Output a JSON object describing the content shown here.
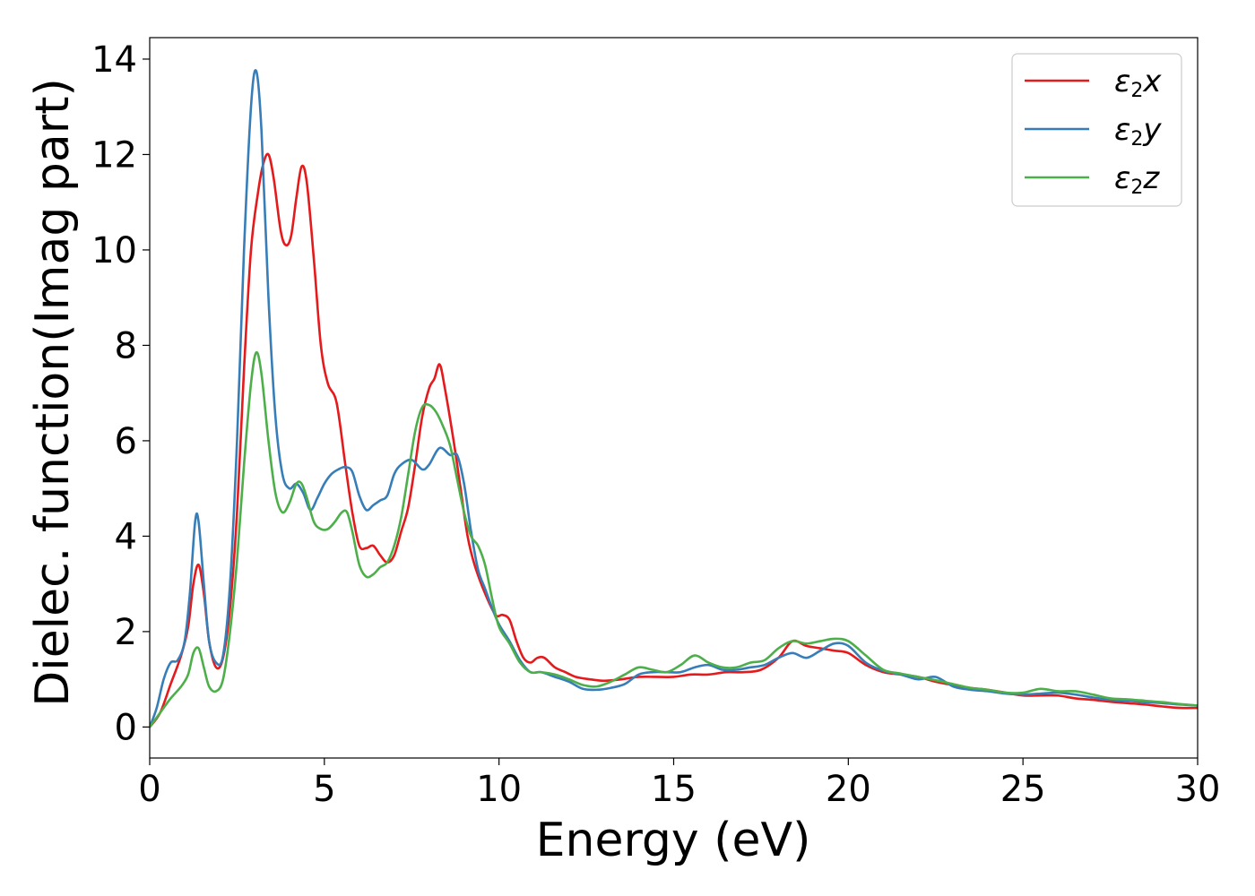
{
  "chart_data": {
    "type": "line",
    "xlabel": "Energy (eV)",
    "ylabel": "Dielec. function(Imag part)",
    "xlim": [
      0,
      30
    ],
    "ylim": [
      -0.65,
      14.45
    ],
    "xticks": [
      0,
      5,
      10,
      15,
      20,
      25,
      30
    ],
    "yticks": [
      0,
      2,
      4,
      6,
      8,
      10,
      12,
      14
    ],
    "grid": false,
    "legend_position": "top-right",
    "series": [
      {
        "name": "ε2x",
        "legend": {
          "base": "ε",
          "sub": "2",
          "suffix": "x"
        },
        "color": "#e41a1c",
        "points": [
          [
            0,
            0
          ],
          [
            0.3,
            0.3
          ],
          [
            0.6,
            0.9
          ],
          [
            0.9,
            1.5
          ],
          [
            1.1,
            2.1
          ],
          [
            1.25,
            3.0
          ],
          [
            1.4,
            3.4
          ],
          [
            1.55,
            2.8
          ],
          [
            1.7,
            1.8
          ],
          [
            1.9,
            1.25
          ],
          [
            2.1,
            1.45
          ],
          [
            2.3,
            2.5
          ],
          [
            2.5,
            4.5
          ],
          [
            2.7,
            7.5
          ],
          [
            2.9,
            10.0
          ],
          [
            3.1,
            11.2
          ],
          [
            3.25,
            11.8
          ],
          [
            3.4,
            12.0
          ],
          [
            3.55,
            11.5
          ],
          [
            3.75,
            10.4
          ],
          [
            3.9,
            10.1
          ],
          [
            4.05,
            10.3
          ],
          [
            4.2,
            11.1
          ],
          [
            4.35,
            11.75
          ],
          [
            4.5,
            11.4
          ],
          [
            4.7,
            9.8
          ],
          [
            4.9,
            8.0
          ],
          [
            5.1,
            7.2
          ],
          [
            5.35,
            6.8
          ],
          [
            5.6,
            5.5
          ],
          [
            5.8,
            4.5
          ],
          [
            6.0,
            3.8
          ],
          [
            6.2,
            3.75
          ],
          [
            6.4,
            3.8
          ],
          [
            6.6,
            3.6
          ],
          [
            6.8,
            3.45
          ],
          [
            7.0,
            3.6
          ],
          [
            7.2,
            4.1
          ],
          [
            7.4,
            4.6
          ],
          [
            7.6,
            5.5
          ],
          [
            7.8,
            6.5
          ],
          [
            8.0,
            7.1
          ],
          [
            8.15,
            7.3
          ],
          [
            8.3,
            7.6
          ],
          [
            8.45,
            7.1
          ],
          [
            8.7,
            6.0
          ],
          [
            8.9,
            5.0
          ],
          [
            9.1,
            4.0
          ],
          [
            9.3,
            3.4
          ],
          [
            9.6,
            2.8
          ],
          [
            9.9,
            2.35
          ],
          [
            10.1,
            2.35
          ],
          [
            10.3,
            2.25
          ],
          [
            10.5,
            1.8
          ],
          [
            10.7,
            1.45
          ],
          [
            10.9,
            1.35
          ],
          [
            11.1,
            1.45
          ],
          [
            11.3,
            1.45
          ],
          [
            11.6,
            1.25
          ],
          [
            11.9,
            1.15
          ],
          [
            12.2,
            1.05
          ],
          [
            12.6,
            1.0
          ],
          [
            13.0,
            0.97
          ],
          [
            13.5,
            1.0
          ],
          [
            14.0,
            1.05
          ],
          [
            14.5,
            1.05
          ],
          [
            15.0,
            1.05
          ],
          [
            15.5,
            1.1
          ],
          [
            16.0,
            1.1
          ],
          [
            16.5,
            1.15
          ],
          [
            17.0,
            1.15
          ],
          [
            17.5,
            1.2
          ],
          [
            18.0,
            1.45
          ],
          [
            18.4,
            1.8
          ],
          [
            18.8,
            1.7
          ],
          [
            19.2,
            1.65
          ],
          [
            19.6,
            1.6
          ],
          [
            20.0,
            1.55
          ],
          [
            20.5,
            1.3
          ],
          [
            21.0,
            1.15
          ],
          [
            21.5,
            1.1
          ],
          [
            22.0,
            1.05
          ],
          [
            22.5,
            0.95
          ],
          [
            23.0,
            0.88
          ],
          [
            23.5,
            0.82
          ],
          [
            24.0,
            0.78
          ],
          [
            24.5,
            0.72
          ],
          [
            25.0,
            0.66
          ],
          [
            25.5,
            0.66
          ],
          [
            26.0,
            0.66
          ],
          [
            26.5,
            0.6
          ],
          [
            27.0,
            0.57
          ],
          [
            27.5,
            0.53
          ],
          [
            28.0,
            0.5
          ],
          [
            28.5,
            0.47
          ],
          [
            29.0,
            0.43
          ],
          [
            29.5,
            0.4
          ],
          [
            30.0,
            0.4
          ]
        ]
      },
      {
        "name": "ε2y",
        "legend": {
          "base": "ε",
          "sub": "2",
          "suffix": "y"
        },
        "color": "#377eb8",
        "points": [
          [
            0,
            0
          ],
          [
            0.2,
            0.4
          ],
          [
            0.4,
            1.0
          ],
          [
            0.6,
            1.35
          ],
          [
            0.8,
            1.4
          ],
          [
            1.0,
            1.8
          ],
          [
            1.15,
            2.8
          ],
          [
            1.3,
            4.3
          ],
          [
            1.4,
            4.3
          ],
          [
            1.55,
            3.0
          ],
          [
            1.7,
            1.8
          ],
          [
            1.9,
            1.35
          ],
          [
            2.1,
            1.5
          ],
          [
            2.3,
            3.0
          ],
          [
            2.5,
            6.0
          ],
          [
            2.7,
            10.0
          ],
          [
            2.9,
            13.0
          ],
          [
            3.05,
            13.75
          ],
          [
            3.2,
            12.5
          ],
          [
            3.4,
            9.0
          ],
          [
            3.6,
            6.5
          ],
          [
            3.8,
            5.3
          ],
          [
            4.0,
            5.0
          ],
          [
            4.2,
            5.1
          ],
          [
            4.4,
            4.9
          ],
          [
            4.6,
            4.55
          ],
          [
            4.8,
            4.8
          ],
          [
            5.0,
            5.1
          ],
          [
            5.2,
            5.3
          ],
          [
            5.4,
            5.4
          ],
          [
            5.6,
            5.45
          ],
          [
            5.8,
            5.35
          ],
          [
            6.0,
            4.85
          ],
          [
            6.2,
            4.55
          ],
          [
            6.4,
            4.65
          ],
          [
            6.6,
            4.75
          ],
          [
            6.8,
            4.85
          ],
          [
            7.0,
            5.3
          ],
          [
            7.2,
            5.5
          ],
          [
            7.5,
            5.6
          ],
          [
            7.8,
            5.4
          ],
          [
            8.0,
            5.5
          ],
          [
            8.3,
            5.85
          ],
          [
            8.6,
            5.7
          ],
          [
            8.8,
            5.7
          ],
          [
            9.0,
            5.1
          ],
          [
            9.2,
            4.1
          ],
          [
            9.4,
            3.3
          ],
          [
            9.6,
            2.9
          ],
          [
            9.8,
            2.5
          ],
          [
            10.0,
            2.15
          ],
          [
            10.3,
            1.8
          ],
          [
            10.6,
            1.4
          ],
          [
            10.9,
            1.15
          ],
          [
            11.2,
            1.15
          ],
          [
            11.6,
            1.05
          ],
          [
            12.0,
            0.95
          ],
          [
            12.4,
            0.8
          ],
          [
            12.8,
            0.78
          ],
          [
            13.2,
            0.82
          ],
          [
            13.6,
            0.9
          ],
          [
            14.0,
            1.1
          ],
          [
            14.4,
            1.15
          ],
          [
            14.8,
            1.15
          ],
          [
            15.2,
            1.15
          ],
          [
            15.6,
            1.25
          ],
          [
            16.0,
            1.3
          ],
          [
            16.4,
            1.2
          ],
          [
            16.8,
            1.2
          ],
          [
            17.2,
            1.25
          ],
          [
            17.6,
            1.3
          ],
          [
            18.0,
            1.45
          ],
          [
            18.4,
            1.55
          ],
          [
            18.8,
            1.45
          ],
          [
            19.2,
            1.6
          ],
          [
            19.6,
            1.75
          ],
          [
            20.0,
            1.7
          ],
          [
            20.5,
            1.35
          ],
          [
            21.0,
            1.18
          ],
          [
            21.5,
            1.1
          ],
          [
            22.0,
            1.0
          ],
          [
            22.5,
            1.05
          ],
          [
            23.0,
            0.85
          ],
          [
            23.5,
            0.78
          ],
          [
            24.0,
            0.75
          ],
          [
            24.5,
            0.7
          ],
          [
            25.0,
            0.68
          ],
          [
            25.5,
            0.7
          ],
          [
            26.0,
            0.72
          ],
          [
            26.5,
            0.68
          ],
          [
            27.0,
            0.62
          ],
          [
            27.5,
            0.57
          ],
          [
            28.0,
            0.55
          ],
          [
            28.5,
            0.52
          ],
          [
            29.0,
            0.5
          ],
          [
            29.5,
            0.47
          ],
          [
            30.0,
            0.45
          ]
        ]
      },
      {
        "name": "ε2z",
        "legend": {
          "base": "ε",
          "sub": "2",
          "suffix": "z"
        },
        "color": "#4daf4a",
        "points": [
          [
            0,
            0
          ],
          [
            0.3,
            0.3
          ],
          [
            0.6,
            0.6
          ],
          [
            0.9,
            0.85
          ],
          [
            1.1,
            1.1
          ],
          [
            1.25,
            1.55
          ],
          [
            1.4,
            1.65
          ],
          [
            1.55,
            1.25
          ],
          [
            1.7,
            0.85
          ],
          [
            1.9,
            0.75
          ],
          [
            2.1,
            1.0
          ],
          [
            2.3,
            2.0
          ],
          [
            2.5,
            3.5
          ],
          [
            2.7,
            5.5
          ],
          [
            2.9,
            7.2
          ],
          [
            3.05,
            7.85
          ],
          [
            3.2,
            7.4
          ],
          [
            3.4,
            6.0
          ],
          [
            3.6,
            4.9
          ],
          [
            3.8,
            4.5
          ],
          [
            4.0,
            4.7
          ],
          [
            4.2,
            5.1
          ],
          [
            4.35,
            5.1
          ],
          [
            4.5,
            4.8
          ],
          [
            4.7,
            4.3
          ],
          [
            4.9,
            4.15
          ],
          [
            5.1,
            4.15
          ],
          [
            5.3,
            4.3
          ],
          [
            5.5,
            4.5
          ],
          [
            5.65,
            4.5
          ],
          [
            5.8,
            4.1
          ],
          [
            6.0,
            3.4
          ],
          [
            6.2,
            3.15
          ],
          [
            6.4,
            3.2
          ],
          [
            6.6,
            3.35
          ],
          [
            6.8,
            3.45
          ],
          [
            7.0,
            3.8
          ],
          [
            7.2,
            4.4
          ],
          [
            7.4,
            5.3
          ],
          [
            7.6,
            6.2
          ],
          [
            7.8,
            6.7
          ],
          [
            8.0,
            6.75
          ],
          [
            8.2,
            6.6
          ],
          [
            8.4,
            6.3
          ],
          [
            8.6,
            5.9
          ],
          [
            8.8,
            5.2
          ],
          [
            9.0,
            4.5
          ],
          [
            9.2,
            4.0
          ],
          [
            9.4,
            3.8
          ],
          [
            9.6,
            3.4
          ],
          [
            9.8,
            2.7
          ],
          [
            10.0,
            2.1
          ],
          [
            10.3,
            1.75
          ],
          [
            10.6,
            1.35
          ],
          [
            10.9,
            1.15
          ],
          [
            11.2,
            1.15
          ],
          [
            11.6,
            1.1
          ],
          [
            12.0,
            1.0
          ],
          [
            12.4,
            0.88
          ],
          [
            12.8,
            0.85
          ],
          [
            13.2,
            0.95
          ],
          [
            13.6,
            1.1
          ],
          [
            14.0,
            1.25
          ],
          [
            14.4,
            1.2
          ],
          [
            14.8,
            1.15
          ],
          [
            15.2,
            1.3
          ],
          [
            15.6,
            1.5
          ],
          [
            16.0,
            1.35
          ],
          [
            16.4,
            1.25
          ],
          [
            16.8,
            1.25
          ],
          [
            17.2,
            1.35
          ],
          [
            17.6,
            1.4
          ],
          [
            18.0,
            1.65
          ],
          [
            18.4,
            1.8
          ],
          [
            18.8,
            1.75
          ],
          [
            19.2,
            1.8
          ],
          [
            19.6,
            1.85
          ],
          [
            20.0,
            1.8
          ],
          [
            20.5,
            1.5
          ],
          [
            21.0,
            1.2
          ],
          [
            21.5,
            1.12
          ],
          [
            22.0,
            1.05
          ],
          [
            22.5,
            0.98
          ],
          [
            23.0,
            0.9
          ],
          [
            23.5,
            0.82
          ],
          [
            24.0,
            0.78
          ],
          [
            24.5,
            0.72
          ],
          [
            25.0,
            0.72
          ],
          [
            25.5,
            0.8
          ],
          [
            26.0,
            0.75
          ],
          [
            26.5,
            0.75
          ],
          [
            27.0,
            0.68
          ],
          [
            27.5,
            0.6
          ],
          [
            28.0,
            0.58
          ],
          [
            28.5,
            0.55
          ],
          [
            29.0,
            0.52
          ],
          [
            29.5,
            0.48
          ],
          [
            30.0,
            0.45
          ]
        ]
      }
    ]
  }
}
